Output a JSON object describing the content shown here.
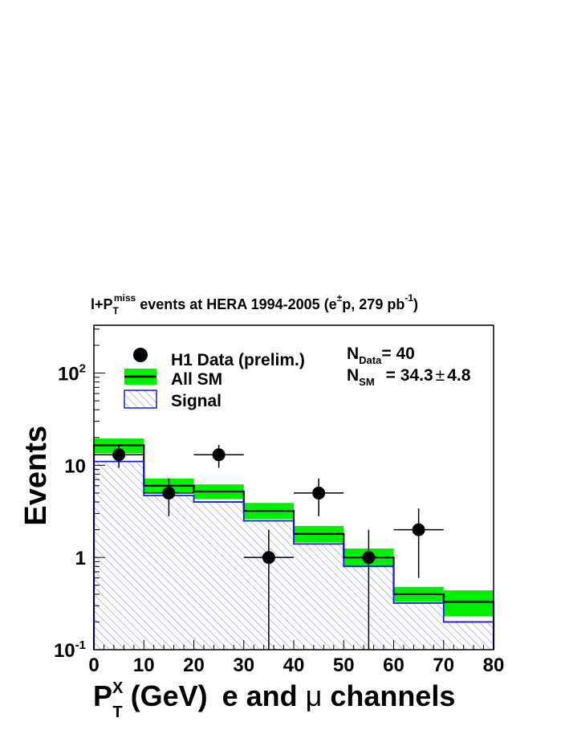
{
  "chart_data": {
    "type": "bar",
    "title": {
      "main": "l+P",
      "sub": "T",
      "sup": "miss",
      "rest": " events at HERA 1994-2005 (e",
      "pm": "±",
      "rest2": "p, 279 pb",
      "exp": "-1",
      "close": ")"
    },
    "ylabel": "Events",
    "xlabel": {
      "main": "P",
      "sup": "X",
      "sub": "T",
      "unit": " (GeV)",
      "channel_a": "e and ",
      "mu": "μ",
      "channel_b": " channels"
    },
    "xlim": [
      0,
      80
    ],
    "ylim": [
      0.1,
      330
    ],
    "y_log_scale": true,
    "grid": false,
    "bin_edges": [
      0,
      10,
      20,
      30,
      40,
      50,
      60,
      70,
      80
    ],
    "x_ticks": [
      "0",
      "10",
      "20",
      "30",
      "40",
      "50",
      "60",
      "70",
      "80"
    ],
    "y_ticks": [
      {
        "value": 0.1,
        "base": "10",
        "exp": "-1"
      },
      {
        "value": 1,
        "base": "1",
        "exp": ""
      },
      {
        "value": 10,
        "base": "10",
        "exp": ""
      },
      {
        "value": 100,
        "base": "10",
        "exp": "2"
      }
    ],
    "series": [
      {
        "name": "H1 Data (prelim.)",
        "kind": "points",
        "x": [
          5,
          15,
          25,
          35,
          45,
          55,
          65
        ],
        "values": [
          13,
          5,
          13,
          1,
          5,
          1,
          2
        ],
        "err_low": [
          3.6,
          2.2,
          3.6,
          1.0,
          2.2,
          1.0,
          1.4
        ],
        "err_high": [
          3.6,
          2.2,
          3.6,
          1.0,
          2.2,
          1.0,
          1.4
        ]
      },
      {
        "name": "All SM",
        "kind": "step-band",
        "values": [
          16.5,
          6.0,
          5.2,
          3.2,
          1.8,
          1.0,
          0.4,
          0.33
        ],
        "band_low": [
          13.5,
          5.0,
          4.3,
          2.6,
          1.45,
          0.8,
          0.33,
          0.23
        ],
        "band_high": [
          19.5,
          7.2,
          6.2,
          3.9,
          2.2,
          1.25,
          0.48,
          0.44
        ],
        "color": "#00ee00"
      },
      {
        "name": "Signal",
        "kind": "hatched-step",
        "values": [
          11,
          4.7,
          4.0,
          2.5,
          1.4,
          0.8,
          0.32,
          0.2
        ],
        "color": "#1a1ae6",
        "hatch_color": "#7c7cd6"
      }
    ],
    "legend_position": "top-left",
    "annotations": {
      "n_data_prefix": "N",
      "n_data_sub": "Data",
      "n_data_value": "= 40",
      "n_sm_prefix": "N",
      "n_sm_sub": "SM",
      "n_sm_value": "= 34.3",
      "n_sm_pm": "±",
      "n_sm_err": "4.8"
    }
  }
}
